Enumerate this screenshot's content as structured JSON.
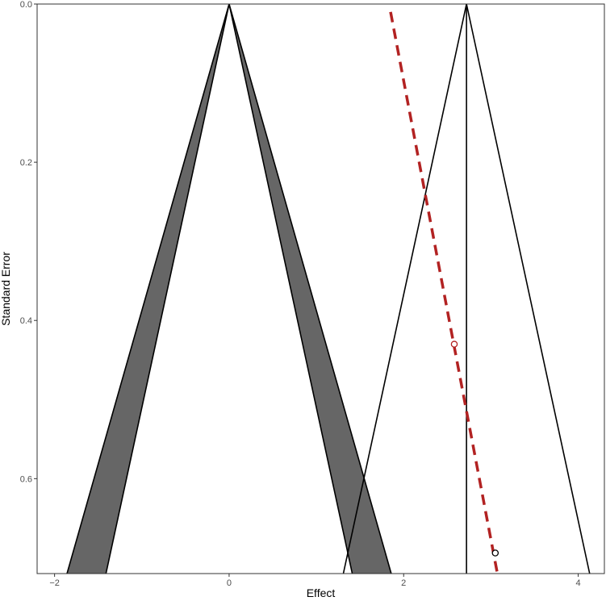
{
  "chart_data": {
    "type": "scatter",
    "subtype": "contour-enhanced funnel plot",
    "xlabel": "Effect",
    "ylabel": "Standard Error",
    "xlim": [
      -2.2,
      4.3
    ],
    "ylim": [
      0.72,
      0.0
    ],
    "y_reversed": true,
    "grid": false,
    "legend": "none",
    "x_ticks": [
      -2,
      0,
      2,
      4
    ],
    "x_tick_labels": [
      "−2",
      "0",
      "2",
      "4"
    ],
    "y_ticks": [
      0.0,
      0.2,
      0.4,
      0.6
    ],
    "y_tick_labels": [
      "0.0",
      "0.2",
      "0.4",
      "0.6"
    ],
    "points": [
      {
        "x": 2.58,
        "y": 0.43,
        "color": "#b22222"
      },
      {
        "x": 3.05,
        "y": 0.694,
        "color": "#000000"
      }
    ],
    "null_funnel": {
      "center": 0,
      "inner_z": 1.96,
      "outer_z": 2.58,
      "fill": "#666666"
    },
    "summary_funnel": {
      "center": 2.72,
      "z": 1.96
    },
    "regression_line": {
      "x_at_se0": 1.85,
      "slope_per_se": 1.7,
      "color": "#b22222",
      "style": "dashed"
    },
    "colors": {
      "shaded_region": "#666666",
      "regression": "#b22222",
      "axis_text": "#4d4d4d"
    }
  }
}
